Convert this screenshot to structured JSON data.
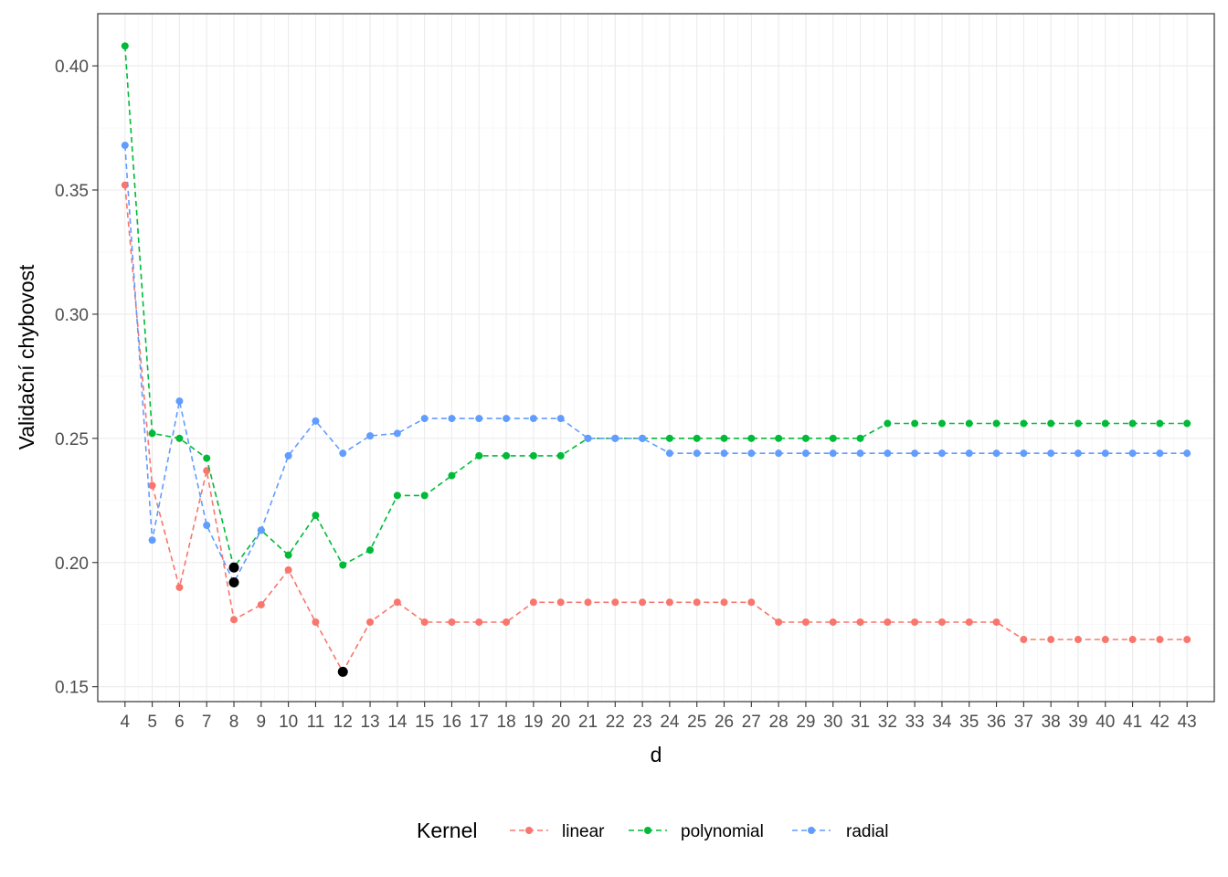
{
  "chart_data": {
    "type": "line",
    "xlabel": "d",
    "ylabel": "Validační chybovost",
    "xlim": [
      3,
      44
    ],
    "ylim": [
      0.144,
      0.421
    ],
    "x_ticks": [
      4,
      5,
      6,
      7,
      8,
      9,
      10,
      11,
      12,
      13,
      14,
      15,
      16,
      17,
      18,
      19,
      20,
      21,
      22,
      23,
      24,
      25,
      26,
      27,
      28,
      29,
      30,
      31,
      32,
      33,
      34,
      35,
      36,
      37,
      38,
      39,
      40,
      41,
      42,
      43
    ],
    "y_ticks": [
      0.15,
      0.2,
      0.25,
      0.3,
      0.35,
      0.4
    ],
    "y_tick_labels": [
      "0.15",
      "0.20",
      "0.25",
      "0.30",
      "0.35",
      "0.40"
    ],
    "grid": true,
    "legend": {
      "title": "Kernel",
      "position": "bottom",
      "entries": [
        "linear",
        "polynomial",
        "radial"
      ]
    },
    "x": [
      4,
      5,
      6,
      7,
      8,
      9,
      10,
      11,
      12,
      13,
      14,
      15,
      16,
      17,
      18,
      19,
      20,
      21,
      22,
      23,
      24,
      25,
      26,
      27,
      28,
      29,
      30,
      31,
      32,
      33,
      34,
      35,
      36,
      37,
      38,
      39,
      40,
      41,
      42,
      43
    ],
    "series": [
      {
        "name": "linear",
        "color": "#F8766D",
        "values": [
          0.352,
          0.231,
          0.19,
          0.237,
          0.177,
          0.183,
          0.197,
          0.176,
          0.156,
          0.176,
          0.184,
          0.176,
          0.176,
          0.176,
          0.176,
          0.184,
          0.184,
          0.184,
          0.184,
          0.184,
          0.184,
          0.184,
          0.184,
          0.184,
          0.176,
          0.176,
          0.176,
          0.176,
          0.176,
          0.176,
          0.176,
          0.176,
          0.176,
          0.169,
          0.169,
          0.169,
          0.169,
          0.169,
          0.169,
          0.169
        ]
      },
      {
        "name": "polynomial",
        "color": "#00BA38",
        "values": [
          0.408,
          0.252,
          0.25,
          0.242,
          0.198,
          0.213,
          0.203,
          0.219,
          0.199,
          0.205,
          0.227,
          0.227,
          0.235,
          0.243,
          0.243,
          0.243,
          0.243,
          0.25,
          0.25,
          0.25,
          0.25,
          0.25,
          0.25,
          0.25,
          0.25,
          0.25,
          0.25,
          0.25,
          0.256,
          0.256,
          0.256,
          0.256,
          0.256,
          0.256,
          0.256,
          0.256,
          0.256,
          0.256,
          0.256,
          0.256
        ]
      },
      {
        "name": "radial",
        "color": "#619CFF",
        "values": [
          0.368,
          0.209,
          0.265,
          0.215,
          0.192,
          0.213,
          0.243,
          0.257,
          0.244,
          0.251,
          0.252,
          0.258,
          0.258,
          0.258,
          0.258,
          0.258,
          0.258,
          0.25,
          0.25,
          0.25,
          0.244,
          0.244,
          0.244,
          0.244,
          0.244,
          0.244,
          0.244,
          0.244,
          0.244,
          0.244,
          0.244,
          0.244,
          0.244,
          0.244,
          0.244,
          0.244,
          0.244,
          0.244,
          0.244,
          0.244
        ]
      }
    ],
    "highlighted_minima": [
      {
        "series": "linear",
        "x": 12,
        "y": 0.156
      },
      {
        "series": "polynomial",
        "x": 8,
        "y": 0.198
      },
      {
        "series": "radial",
        "x": 8,
        "y": 0.192
      }
    ],
    "highlight_color": "#000000",
    "panel_background": "#FFFFFF",
    "grid_color": "#EBEBEB",
    "border_color": "#333333"
  }
}
